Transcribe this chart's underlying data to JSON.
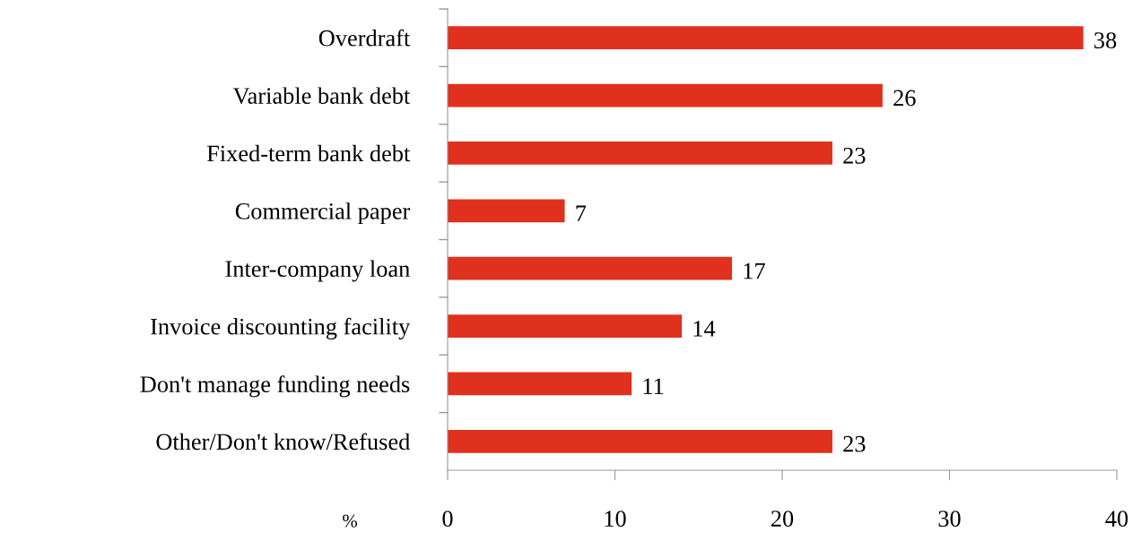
{
  "chart_data": {
    "type": "bar",
    "orientation": "horizontal",
    "xlabel": "%",
    "categories": [
      "Overdraft",
      "Variable bank debt",
      "Fixed-term bank debt",
      "Commercial paper",
      "Inter-company loan",
      "Invoice discounting facility",
      "Don't manage funding needs",
      "Other/Don't know/Refused"
    ],
    "values": [
      38,
      26,
      23,
      7,
      17,
      14,
      11,
      23
    ],
    "color": "#e0301e",
    "xlim": [
      0,
      40
    ],
    "xticks": [
      0,
      10,
      20,
      30,
      40
    ],
    "grid": false,
    "data_labels": true
  }
}
